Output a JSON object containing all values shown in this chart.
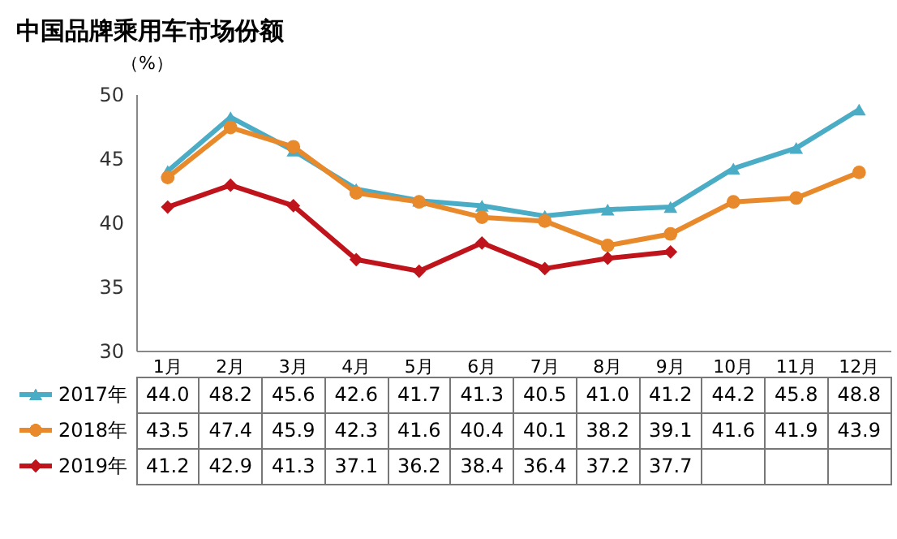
{
  "chart_data": {
    "type": "line",
    "title": "中国品牌乘用车市场份额",
    "ylabel": "（%）",
    "legend": "left",
    "categories": [
      "1月",
      "2月",
      "3月",
      "4月",
      "5月",
      "6月",
      "7月",
      "8月",
      "9月",
      "10月",
      "11月",
      "12月"
    ],
    "ylim": [
      30,
      50
    ],
    "yticks": [
      30,
      35,
      40,
      45,
      50
    ],
    "series": [
      {
        "name": "2017年",
        "color": "#4bacc6",
        "marker": "triangle",
        "values": [
          44.0,
          48.2,
          45.6,
          42.6,
          41.7,
          41.3,
          40.5,
          41.0,
          41.2,
          44.2,
          45.8,
          48.8
        ],
        "value_labels": [
          "44.0",
          "48.2",
          "45.6",
          "42.6",
          "41.7",
          "41.3",
          "40.5",
          "41.0",
          "41.2",
          "44.2",
          "45.8",
          "48.8"
        ]
      },
      {
        "name": "2018年",
        "color": "#e8892c",
        "marker": "circle",
        "values": [
          43.5,
          47.4,
          45.9,
          42.3,
          41.6,
          40.4,
          40.1,
          38.2,
          39.1,
          41.6,
          41.9,
          43.9
        ],
        "value_labels": [
          "43.5",
          "47.4",
          "45.9",
          "42.3",
          "41.6",
          "40.4",
          "40.1",
          "38.2",
          "39.1",
          "41.6",
          "41.9",
          "43.9"
        ]
      },
      {
        "name": "2019年",
        "color": "#c0141c",
        "marker": "diamond",
        "values": [
          41.2,
          42.9,
          41.3,
          37.1,
          36.2,
          38.4,
          36.4,
          37.2,
          37.7,
          null,
          null,
          null
        ],
        "value_labels": [
          "41.2",
          "42.9",
          "41.3",
          "37.1",
          "36.2",
          "38.4",
          "36.4",
          "37.2",
          "37.7",
          null,
          null,
          null
        ]
      }
    ]
  }
}
